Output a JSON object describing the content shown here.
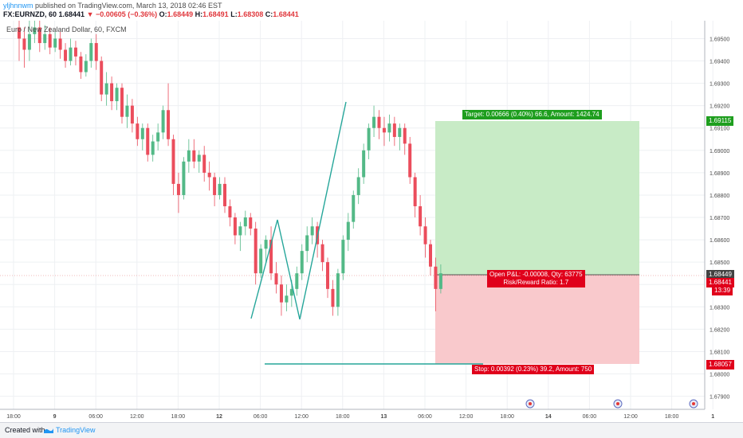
{
  "header": {
    "user": "yljhnnwm",
    "published_text": " published on TradingView.com, March 13, 2018 02:46 EST",
    "symbol": "FX:EURNZD, 60",
    "last": "1.68441",
    "change": "▼ −0.00605 (−0.36%)",
    "o_label": "O:",
    "o_value": "1.68449",
    "h_label": "H:",
    "h_value": "1.68491",
    "l_label": "L:",
    "l_value": "1.68308",
    "c_label": "C:",
    "c_value": "1.68441"
  },
  "legend": {
    "text": "Euro / New Zealand Dollar, 60, FXCM"
  },
  "position": {
    "target_text": "Target: 0.00666 (0.40%) 66.6, Amount: 1424.74",
    "pnl_text": "Open P&L: -0.00008, Qty: 63775",
    "rr_text": "Risk/Reward Ratio: 1.7",
    "stop_text": "Stop: 0.00392 (0.23%) 39.2, Amount: 750",
    "colors": {
      "profit": "#089981",
      "loss": "#f23645"
    }
  },
  "price_tags": {
    "target": "1.69115",
    "entry": "1.68449",
    "current": "1.68441",
    "countdown": "13:39",
    "stop": "1.68057"
  },
  "chart_data": {
    "type": "candlestick",
    "y_ticks": [
      "1.69500",
      "1.69400",
      "1.69300",
      "1.69200",
      "1.69100",
      "1.69000",
      "1.68900",
      "1.68800",
      "1.68700",
      "1.68600",
      "1.68500",
      "1.68400",
      "1.68300",
      "1.68200",
      "1.68100",
      "1.68000",
      "1.67900"
    ],
    "ylim": [
      1.6787,
      1.6958
    ],
    "x_ticks": [
      "18:00",
      "9",
      "06:00",
      "12:00",
      "18:00",
      "12",
      "06:00",
      "12:00",
      "18:00",
      "13",
      "06:00",
      "12:00",
      "18:00",
      "14",
      "06:00",
      "12:00",
      "18:00",
      "1"
    ],
    "candles": [
      [
        1.6955,
        1.695,
        1.6958,
        1.694
      ],
      [
        1.695,
        1.6945,
        1.6955,
        1.6937
      ],
      [
        1.6945,
        1.6952,
        1.6958,
        1.694
      ],
      [
        1.6952,
        1.6955,
        1.6958,
        1.6948
      ],
      [
        1.6955,
        1.6948,
        1.6958,
        1.6944
      ],
      [
        1.6948,
        1.6952,
        1.6956,
        1.6945
      ],
      [
        1.6952,
        1.6946,
        1.6955,
        1.6943
      ],
      [
        1.6946,
        1.695,
        1.6953,
        1.6944
      ],
      [
        1.695,
        1.6945,
        1.6953,
        1.6941
      ],
      [
        1.6945,
        1.694,
        1.6948,
        1.6937
      ],
      [
        1.694,
        1.6946,
        1.695,
        1.6938
      ],
      [
        1.6946,
        1.6942,
        1.6949,
        1.6938
      ],
      [
        1.6942,
        1.6935,
        1.6944,
        1.6932
      ],
      [
        1.6935,
        1.694,
        1.6943,
        1.6933
      ],
      [
        1.694,
        1.6948,
        1.695,
        1.6937
      ],
      [
        1.6948,
        1.694,
        1.6952,
        1.6936
      ],
      [
        1.694,
        1.6925,
        1.6942,
        1.6922
      ],
      [
        1.6925,
        1.693,
        1.6935,
        1.692
      ],
      [
        1.693,
        1.6922,
        1.6933,
        1.6918
      ],
      [
        1.6922,
        1.6928,
        1.693,
        1.6918
      ],
      [
        1.6928,
        1.6915,
        1.693,
        1.6912
      ],
      [
        1.6915,
        1.692,
        1.6925,
        1.691
      ],
      [
        1.692,
        1.6912,
        1.6923,
        1.6908
      ],
      [
        1.6912,
        1.6905,
        1.6915,
        1.6902
      ],
      [
        1.6905,
        1.691,
        1.6912,
        1.69
      ],
      [
        1.691,
        1.6898,
        1.6912,
        1.6895
      ],
      [
        1.6898,
        1.6904,
        1.6907,
        1.6895
      ],
      [
        1.6904,
        1.6908,
        1.6912,
        1.69
      ],
      [
        1.6908,
        1.6918,
        1.692,
        1.6905
      ],
      [
        1.6918,
        1.6905,
        1.693,
        1.6902
      ],
      [
        1.6905,
        1.6885,
        1.6907,
        1.688
      ],
      [
        1.6885,
        1.688,
        1.689,
        1.6872
      ],
      [
        1.688,
        1.6895,
        1.6897,
        1.6878
      ],
      [
        1.6895,
        1.69,
        1.6905,
        1.689
      ],
      [
        1.69,
        1.6895,
        1.6905,
        1.6892
      ],
      [
        1.6895,
        1.6898,
        1.69,
        1.689
      ],
      [
        1.6898,
        1.689,
        1.6902,
        1.6886
      ],
      [
        1.689,
        1.6888,
        1.6895,
        1.6882
      ],
      [
        1.6888,
        1.688,
        1.689,
        1.6875
      ],
      [
        1.688,
        1.6885,
        1.6888,
        1.6878
      ],
      [
        1.6885,
        1.6875,
        1.6888,
        1.6872
      ],
      [
        1.6875,
        1.687,
        1.6878,
        1.6866
      ],
      [
        1.687,
        1.6862,
        1.6872,
        1.6858
      ],
      [
        1.6862,
        1.6866,
        1.6868,
        1.6855
      ],
      [
        1.6866,
        1.687,
        1.6873,
        1.6862
      ],
      [
        1.687,
        1.6865,
        1.6872,
        1.6862
      ],
      [
        1.6865,
        1.6845,
        1.6868,
        1.684
      ],
      [
        1.6845,
        1.6856,
        1.6858,
        1.6843
      ],
      [
        1.6856,
        1.686,
        1.6862,
        1.685
      ],
      [
        1.686,
        1.6845,
        1.6866,
        1.6842
      ],
      [
        1.6845,
        1.684,
        1.685,
        1.6836
      ],
      [
        1.684,
        1.6832,
        1.6844,
        1.6826
      ],
      [
        1.6832,
        1.6835,
        1.684,
        1.6828
      ],
      [
        1.6835,
        1.6838,
        1.6842,
        1.683
      ],
      [
        1.6838,
        1.6845,
        1.6848,
        1.6835
      ],
      [
        1.6845,
        1.6855,
        1.6858,
        1.6842
      ],
      [
        1.6855,
        1.6862,
        1.6866,
        1.685
      ],
      [
        1.6862,
        1.6866,
        1.687,
        1.6858
      ],
      [
        1.6866,
        1.6858,
        1.6868,
        1.6852
      ],
      [
        1.6858,
        1.685,
        1.686,
        1.6846
      ],
      [
        1.685,
        1.6838,
        1.6852,
        1.6834
      ],
      [
        1.6838,
        1.683,
        1.6842,
        1.6826
      ],
      [
        1.683,
        1.6845,
        1.6847,
        1.6826
      ],
      [
        1.6845,
        1.686,
        1.6862,
        1.6842
      ],
      [
        1.686,
        1.6868,
        1.6872,
        1.6855
      ],
      [
        1.6868,
        1.688,
        1.6882,
        1.6865
      ],
      [
        1.688,
        1.6888,
        1.6892,
        1.6876
      ],
      [
        1.6888,
        1.69,
        1.6903,
        1.6885
      ],
      [
        1.69,
        1.691,
        1.6912,
        1.6896
      ],
      [
        1.691,
        1.6915,
        1.692,
        1.6906
      ],
      [
        1.6915,
        1.691,
        1.6918,
        1.6905
      ],
      [
        1.691,
        1.6908,
        1.6915,
        1.6902
      ],
      [
        1.6908,
        1.6912,
        1.6916,
        1.6904
      ],
      [
        1.6912,
        1.6906,
        1.6915,
        1.6902
      ],
      [
        1.6906,
        1.691,
        1.6912,
        1.69
      ],
      [
        1.691,
        1.6903,
        1.6912,
        1.6898
      ],
      [
        1.6903,
        1.6888,
        1.6906,
        1.6885
      ],
      [
        1.6888,
        1.6875,
        1.689,
        1.687
      ],
      [
        1.6875,
        1.6866,
        1.688,
        1.6862
      ],
      [
        1.6866,
        1.6858,
        1.687,
        1.6852
      ],
      [
        1.6858,
        1.6848,
        1.686,
        1.6844
      ],
      [
        1.6848,
        1.6838,
        1.6852,
        1.6828
      ],
      [
        1.6838,
        1.6845,
        1.6849,
        1.6836
      ]
    ]
  }
}
